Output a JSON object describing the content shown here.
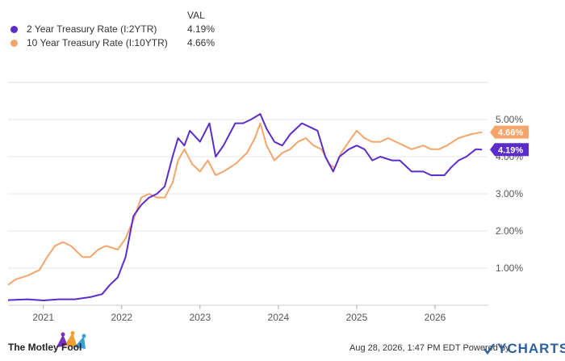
{
  "legend": {
    "header": "VAL",
    "rows": [
      {
        "name": "2 Year Treasury Rate (I:2YTR)",
        "value": "4.19%",
        "color": "#5b2ccb"
      },
      {
        "name": "10 Year Treasury Rate (I:10YTR)",
        "value": "4.66%",
        "color": "#f5a56a"
      }
    ]
  },
  "chart_data": {
    "type": "line",
    "x_ticks": [
      "2021",
      "2022",
      "2023",
      "2024",
      "2025",
      "2026"
    ],
    "x_range": [
      2020.55,
      2026.68
    ],
    "y_range": [
      0,
      6
    ],
    "y_ticks": [
      "1.00%",
      "2.00%",
      "3.00%",
      "4.00%",
      "5.00%"
    ],
    "grid": true,
    "series": [
      {
        "name": "2 Year Treasury Rate (I:2YTR)",
        "color": "#5b2ccb",
        "end_label": "4.19%",
        "points": [
          [
            2020.55,
            0.14
          ],
          [
            2020.8,
            0.16
          ],
          [
            2021.0,
            0.13
          ],
          [
            2021.2,
            0.16
          ],
          [
            2021.4,
            0.16
          ],
          [
            2021.6,
            0.22
          ],
          [
            2021.75,
            0.3
          ],
          [
            2021.85,
            0.55
          ],
          [
            2021.95,
            0.75
          ],
          [
            2022.05,
            1.3
          ],
          [
            2022.15,
            2.4
          ],
          [
            2022.25,
            2.7
          ],
          [
            2022.35,
            2.9
          ],
          [
            2022.45,
            3.0
          ],
          [
            2022.55,
            3.2
          ],
          [
            2022.65,
            4.0
          ],
          [
            2022.72,
            4.5
          ],
          [
            2022.8,
            4.3
          ],
          [
            2022.87,
            4.7
          ],
          [
            2023.0,
            4.4
          ],
          [
            2023.12,
            4.9
          ],
          [
            2023.2,
            4.0
          ],
          [
            2023.3,
            4.3
          ],
          [
            2023.45,
            4.9
          ],
          [
            2023.55,
            4.9
          ],
          [
            2023.65,
            5.0
          ],
          [
            2023.77,
            5.15
          ],
          [
            2023.85,
            4.75
          ],
          [
            2023.95,
            4.4
          ],
          [
            2024.05,
            4.3
          ],
          [
            2024.15,
            4.6
          ],
          [
            2024.3,
            4.9
          ],
          [
            2024.4,
            4.8
          ],
          [
            2024.5,
            4.7
          ],
          [
            2024.6,
            4.0
          ],
          [
            2024.7,
            3.6
          ],
          [
            2024.78,
            4.0
          ],
          [
            2024.9,
            4.2
          ],
          [
            2025.0,
            4.3
          ],
          [
            2025.1,
            4.2
          ],
          [
            2025.2,
            3.9
          ],
          [
            2025.3,
            4.0
          ],
          [
            2025.45,
            3.9
          ],
          [
            2025.55,
            3.9
          ],
          [
            2025.7,
            3.6
          ],
          [
            2025.85,
            3.6
          ],
          [
            2025.95,
            3.5
          ],
          [
            2026.0,
            3.5
          ],
          [
            2026.12,
            3.5
          ],
          [
            2026.2,
            3.7
          ],
          [
            2026.3,
            3.9
          ],
          [
            2026.4,
            4.0
          ],
          [
            2026.52,
            4.2
          ],
          [
            2026.6,
            4.19
          ]
        ]
      },
      {
        "name": "10 Year Treasury Rate (I:10YTR)",
        "color": "#f5a56a",
        "end_label": "4.66%",
        "points": [
          [
            2020.55,
            0.55
          ],
          [
            2020.65,
            0.7
          ],
          [
            2020.8,
            0.8
          ],
          [
            2020.95,
            0.95
          ],
          [
            2021.05,
            1.3
          ],
          [
            2021.15,
            1.6
          ],
          [
            2021.25,
            1.7
          ],
          [
            2021.35,
            1.6
          ],
          [
            2021.5,
            1.3
          ],
          [
            2021.6,
            1.3
          ],
          [
            2021.7,
            1.5
          ],
          [
            2021.8,
            1.6
          ],
          [
            2021.95,
            1.5
          ],
          [
            2022.05,
            1.8
          ],
          [
            2022.15,
            2.3
          ],
          [
            2022.25,
            2.9
          ],
          [
            2022.35,
            3.0
          ],
          [
            2022.45,
            2.9
          ],
          [
            2022.55,
            2.9
          ],
          [
            2022.65,
            3.3
          ],
          [
            2022.72,
            3.9
          ],
          [
            2022.8,
            4.2
          ],
          [
            2022.9,
            3.8
          ],
          [
            2023.0,
            3.6
          ],
          [
            2023.1,
            3.9
          ],
          [
            2023.2,
            3.5
          ],
          [
            2023.3,
            3.6
          ],
          [
            2023.45,
            3.8
          ],
          [
            2023.6,
            4.1
          ],
          [
            2023.7,
            4.5
          ],
          [
            2023.77,
            4.9
          ],
          [
            2023.85,
            4.3
          ],
          [
            2023.95,
            3.9
          ],
          [
            2024.05,
            4.1
          ],
          [
            2024.15,
            4.2
          ],
          [
            2024.25,
            4.4
          ],
          [
            2024.35,
            4.5
          ],
          [
            2024.45,
            4.3
          ],
          [
            2024.55,
            4.2
          ],
          [
            2024.65,
            3.8
          ],
          [
            2024.72,
            3.7
          ],
          [
            2024.8,
            4.1
          ],
          [
            2024.9,
            4.4
          ],
          [
            2025.0,
            4.7
          ],
          [
            2025.1,
            4.5
          ],
          [
            2025.2,
            4.4
          ],
          [
            2025.3,
            4.4
          ],
          [
            2025.4,
            4.5
          ],
          [
            2025.5,
            4.4
          ],
          [
            2025.6,
            4.3
          ],
          [
            2025.7,
            4.2
          ],
          [
            2025.85,
            4.3
          ],
          [
            2025.95,
            4.2
          ],
          [
            2026.05,
            4.2
          ],
          [
            2026.15,
            4.3
          ],
          [
            2026.3,
            4.5
          ],
          [
            2026.45,
            4.6
          ],
          [
            2026.6,
            4.66
          ]
        ]
      }
    ]
  },
  "footer": {
    "brand": "The Motley Fool",
    "stamp": "Aug 28, 2026, 1:47 PM EDT  Powered by",
    "ycharts": "YCHARTS"
  }
}
